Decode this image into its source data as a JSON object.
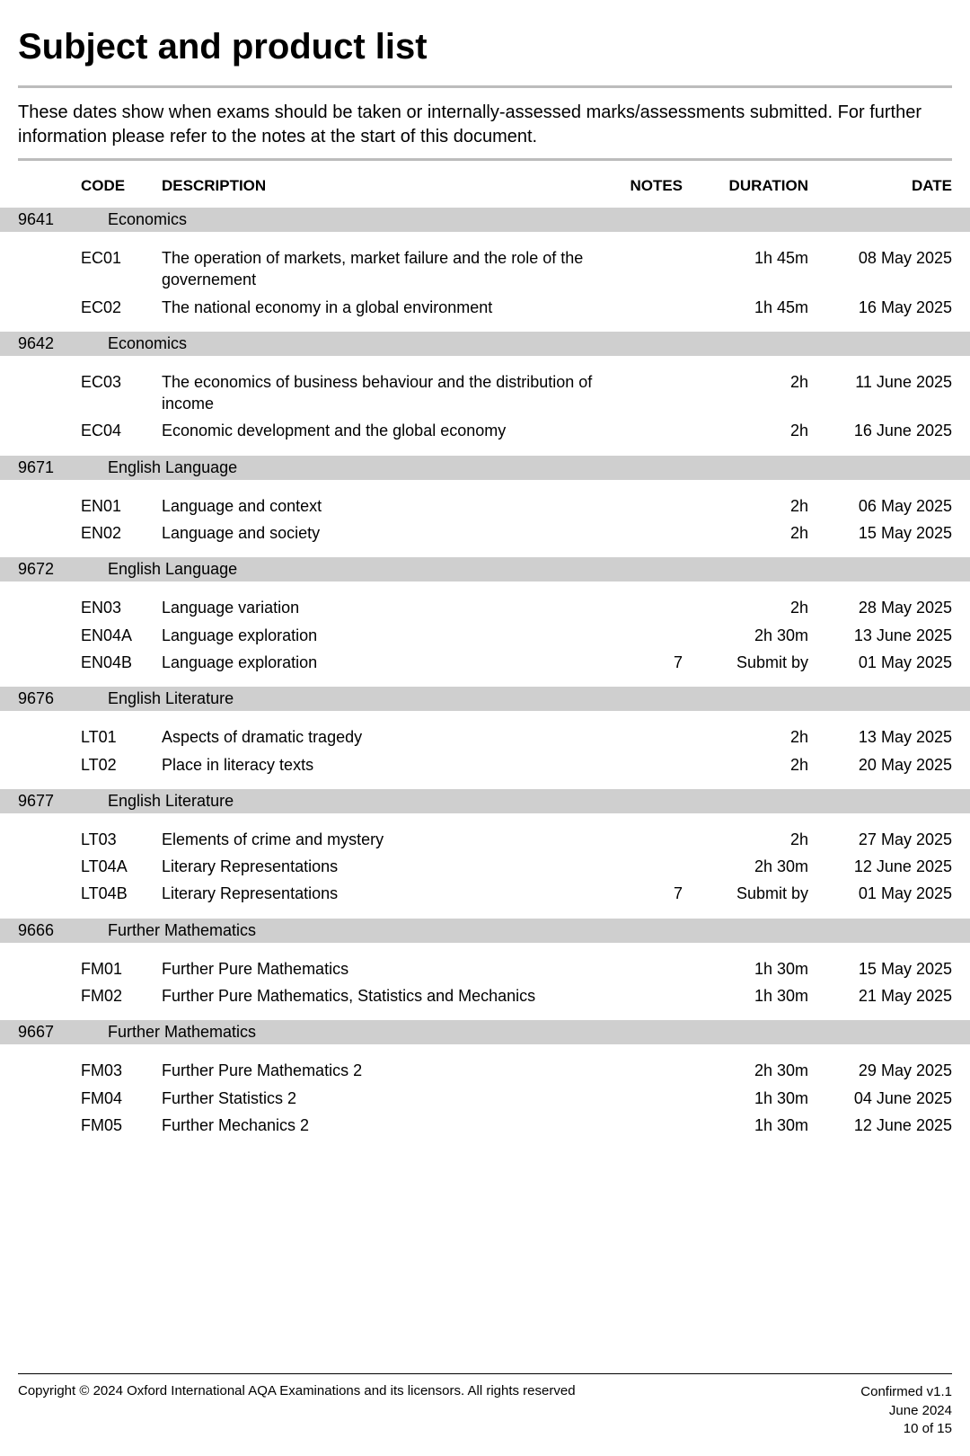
{
  "title": "Subject and product list",
  "intro": "These dates show when exams should be taken or internally-assessed marks/assessments submitted.  For further information please refer to the notes at the start of this document.",
  "headers": {
    "code": "CODE",
    "description": "DESCRIPTION",
    "notes": "NOTES",
    "duration": "DURATION",
    "date": "DATE"
  },
  "groups": [
    {
      "id": "9641",
      "name": "Economics",
      "rows": [
        {
          "code": "EC01",
          "desc": "The operation of markets, market failure and the role of the governement",
          "notes": "",
          "duration": "1h 45m",
          "date": "08 May 2025"
        },
        {
          "code": "EC02",
          "desc": "The national economy in a global environment",
          "notes": "",
          "duration": "1h 45m",
          "date": "16 May 2025"
        }
      ]
    },
    {
      "id": "9642",
      "name": "Economics",
      "rows": [
        {
          "code": "EC03",
          "desc": "The economics of business behaviour and the distribution of income",
          "notes": "",
          "duration": "2h",
          "date": "11 June 2025"
        },
        {
          "code": "EC04",
          "desc": "Economic development and the global economy",
          "notes": "",
          "duration": "2h",
          "date": "16 June 2025"
        }
      ]
    },
    {
      "id": "9671",
      "name": "English Language",
      "rows": [
        {
          "code": "EN01",
          "desc": "Language and context",
          "notes": "",
          "duration": "2h",
          "date": "06 May 2025"
        },
        {
          "code": "EN02",
          "desc": "Language and society",
          "notes": "",
          "duration": "2h",
          "date": "15 May 2025"
        }
      ]
    },
    {
      "id": "9672",
      "name": "English Language",
      "rows": [
        {
          "code": "EN03",
          "desc": "Language variation",
          "notes": "",
          "duration": "2h",
          "date": "28 May 2025"
        },
        {
          "code": "EN04A",
          "desc": "Language exploration",
          "notes": "",
          "duration": "2h 30m",
          "date": "13 June 2025"
        },
        {
          "code": "EN04B",
          "desc": "Language exploration",
          "notes": "7",
          "duration": "Submit by",
          "date": "01 May 2025"
        }
      ]
    },
    {
      "id": "9676",
      "name": "English Literature",
      "rows": [
        {
          "code": "LT01",
          "desc": "Aspects of dramatic tragedy",
          "notes": "",
          "duration": "2h",
          "date": "13 May 2025"
        },
        {
          "code": "LT02",
          "desc": "Place in literacy texts",
          "notes": "",
          "duration": "2h",
          "date": "20 May 2025"
        }
      ]
    },
    {
      "id": "9677",
      "name": "English Literature",
      "rows": [
        {
          "code": "LT03",
          "desc": "Elements of crime and mystery",
          "notes": "",
          "duration": "2h",
          "date": "27 May 2025"
        },
        {
          "code": "LT04A",
          "desc": "Literary Representations",
          "notes": "",
          "duration": "2h 30m",
          "date": "12 June 2025"
        },
        {
          "code": "LT04B",
          "desc": "Literary Representations",
          "notes": "7",
          "duration": "Submit by",
          "date": "01 May 2025"
        }
      ]
    },
    {
      "id": "9666",
      "name": "Further Mathematics",
      "rows": [
        {
          "code": "FM01",
          "desc": "Further Pure Mathematics",
          "notes": "",
          "duration": "1h 30m",
          "date": "15 May 2025"
        },
        {
          "code": "FM02",
          "desc": "Further Pure Mathematics, Statistics and Mechanics",
          "notes": "",
          "duration": "1h 30m",
          "date": "21 May 2025"
        }
      ]
    },
    {
      "id": "9667",
      "name": "Further Mathematics",
      "rows": [
        {
          "code": "FM03",
          "desc": "Further Pure Mathematics 2",
          "notes": "",
          "duration": "2h 30m",
          "date": "29 May 2025"
        },
        {
          "code": "FM04",
          "desc": "Further Statistics 2",
          "notes": "",
          "duration": "1h 30m",
          "date": "04 June 2025"
        },
        {
          "code": "FM05",
          "desc": "Further Mechanics 2",
          "notes": "",
          "duration": "1h 30m",
          "date": "12 June 2025"
        }
      ]
    }
  ],
  "footer": {
    "copyright": "Copyright © 2024 Oxford International AQA Examinations and its licensors. All rights reserved",
    "version": "Confirmed v1.1",
    "issued": "June 2024",
    "page": "10 of 15"
  }
}
